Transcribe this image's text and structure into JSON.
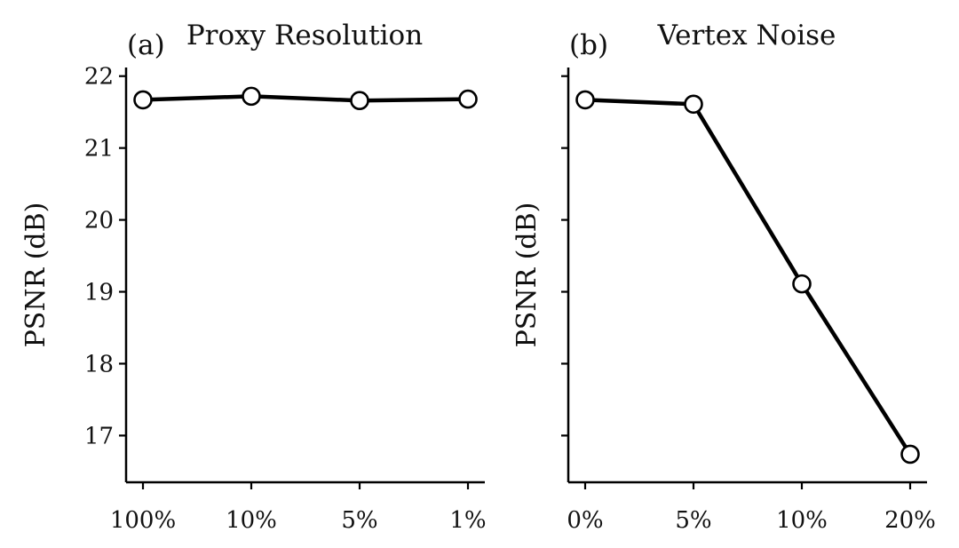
{
  "chart_data": [
    {
      "type": "line",
      "panel_label": "(a)",
      "title": "Proxy Resolution",
      "xlabel": "",
      "ylabel": "PSNR (dB)",
      "categories": [
        "100%",
        "10%",
        "5%",
        "1%"
      ],
      "series": [
        {
          "values": [
            21.67,
            21.72,
            21.66,
            21.68
          ]
        }
      ],
      "ylim": [
        16.35,
        22.12
      ],
      "yticks": [
        "17",
        "18",
        "19",
        "20",
        "21",
        "22"
      ],
      "show_ytick_labels": true,
      "grid": false,
      "line_color": "#000000",
      "marker_fill": "#ffffff"
    },
    {
      "type": "line",
      "panel_label": "(b)",
      "title": "Vertex Noise",
      "xlabel": "",
      "ylabel": "PSNR (dB)",
      "categories": [
        "0%",
        "5%",
        "10%",
        "20%"
      ],
      "series": [
        {
          "values": [
            21.67,
            21.61,
            19.11,
            16.74
          ]
        }
      ],
      "ylim": [
        16.35,
        22.12
      ],
      "yticks": [
        "17",
        "18",
        "19",
        "20",
        "21",
        "22"
      ],
      "show_ytick_labels": false,
      "grid": false,
      "line_color": "#000000",
      "marker_fill": "#ffffff"
    }
  ]
}
